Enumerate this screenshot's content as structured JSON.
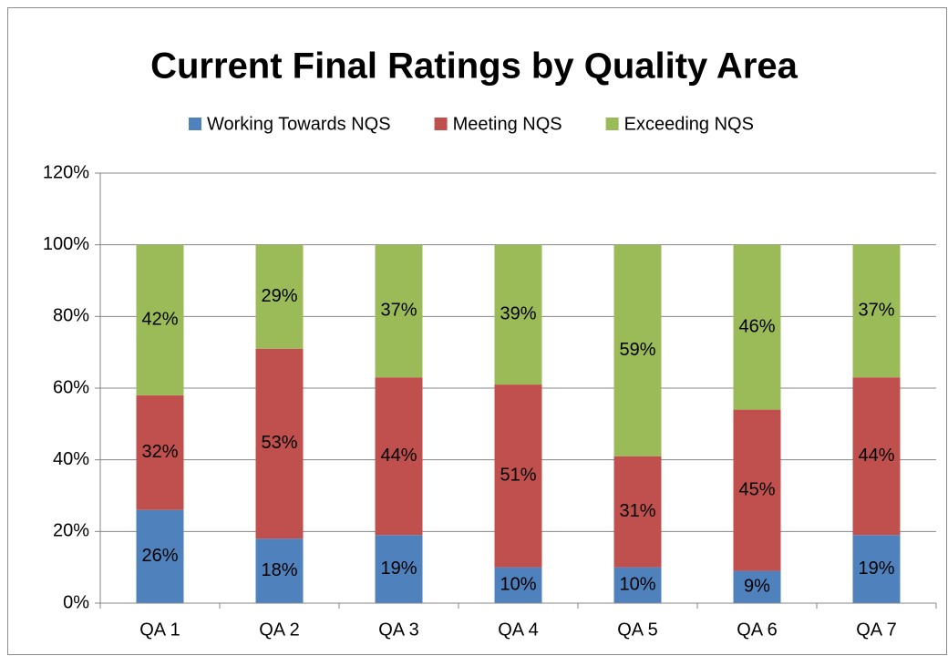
{
  "chart_data": {
    "type": "stacked_bar",
    "title": "Current Final Ratings by Quality Area",
    "categories": [
      "QA 1",
      "QA 2",
      "QA 3",
      "QA 4",
      "QA 5",
      "QA 6",
      "QA 7"
    ],
    "series": [
      {
        "name": "Working Towards NQS",
        "color": "#4f81bd",
        "values": [
          26,
          18,
          19,
          10,
          10,
          9,
          19
        ],
        "value_labels": [
          "26%",
          "18%",
          "19%",
          "10%",
          "10%",
          "9%",
          "19%"
        ]
      },
      {
        "name": "Meeting NQS",
        "color": "#c0504d",
        "values": [
          32,
          53,
          44,
          51,
          31,
          45,
          44
        ],
        "value_labels": [
          "32%",
          "53%",
          "44%",
          "51%",
          "31%",
          "45%",
          "44%"
        ]
      },
      {
        "name": "Exceeding NQS",
        "color": "#9bbb59",
        "values": [
          42,
          29,
          37,
          39,
          59,
          46,
          37
        ],
        "value_labels": [
          "42%",
          "29%",
          "37%",
          "39%",
          "59%",
          "46%",
          "37%"
        ]
      }
    ],
    "ylim": [
      0,
      120
    ],
    "yticks": [
      {
        "value": 0,
        "label": "0%"
      },
      {
        "value": 20,
        "label": "20%"
      },
      {
        "value": 40,
        "label": "40%"
      },
      {
        "value": 60,
        "label": "60%"
      },
      {
        "value": 80,
        "label": "80%"
      },
      {
        "value": 100,
        "label": "100%"
      },
      {
        "value": 120,
        "label": "120%"
      }
    ],
    "grid": true,
    "legend": "top"
  }
}
